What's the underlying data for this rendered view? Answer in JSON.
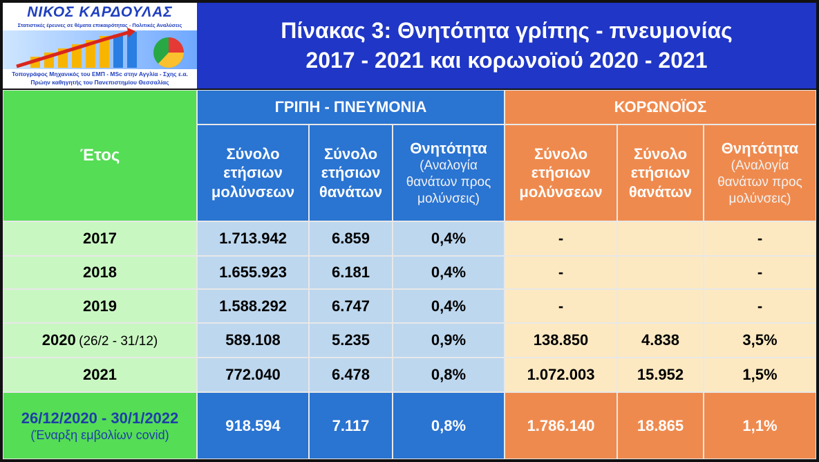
{
  "header": {
    "logo": {
      "name": "ΝΙΚΟΣ ΚΑΡΔΟΥΛΑΣ",
      "tagline": "Στατιστικές έρευνες σε θέματα επικαιρότητας - Πολιτικές Αναλύσεις",
      "credits": [
        "Τοπογράφος Μηχανικός του ΕΜΠ - MSc στην Αγγλία - Σχης ε.α.",
        "Πρώην καθηγητής του Πανεπιστημίου Θεσσαλίας"
      ]
    },
    "title": [
      "Πίνακας 3:  Θνητότητα γρίπης - πνευμονίας",
      "2017 - 2021 και κορωνοϊού 2020 - 2021"
    ]
  },
  "table": {
    "year_header": "Έτος",
    "groups": [
      "ΓΡΙΠΗ - ΠΝΕΥΜΟΝΙΑ",
      "ΚΟΡΩΝΟΪΟΣ"
    ],
    "columns": [
      {
        "title": "Σύνολο ετήσιων μολύνσεων"
      },
      {
        "title": "Σύνολο ετήσιων θανάτων"
      },
      {
        "title": "Θνητότητα",
        "note": "(Αναλογία θανάτων προς μολύνσεις)"
      },
      {
        "title": "Σύνολο ετήσιων μολύνσεων"
      },
      {
        "title": "Σύνολο ετήσιων θανάτων"
      },
      {
        "title": "Θνητότητα",
        "note": "(Αναλογία θανάτων προς μολύνσεις)"
      }
    ],
    "rows": [
      {
        "label": "2017",
        "values": [
          "1.713.942",
          "6.859",
          "0,4%",
          "-",
          null,
          "-"
        ]
      },
      {
        "label": "2018",
        "values": [
          "1.655.923",
          "6.181",
          "0,4%",
          "-",
          null,
          "-"
        ]
      },
      {
        "label": "2019",
        "values": [
          "1.588.292",
          "6.747",
          "0,4%",
          "-",
          null,
          "-"
        ]
      },
      {
        "label": "2020",
        "note": "(26/2 - 31/12)",
        "values": [
          "589.108",
          "5.235",
          "0,9%",
          "138.850",
          "4.838",
          "3,5%"
        ]
      },
      {
        "label": "2021",
        "values": [
          "772.040",
          "6.478",
          "0,8%",
          "1.072.003",
          "15.952",
          "1,5%"
        ]
      },
      {
        "label": "26/12/2020 - 30/1/2022",
        "note": "(Έναρξη εμβολίων covid)",
        "values": [
          "918.594",
          "7.117",
          "0,8%",
          "1.786.140",
          "18.865",
          "1,1%"
        ]
      }
    ]
  }
}
